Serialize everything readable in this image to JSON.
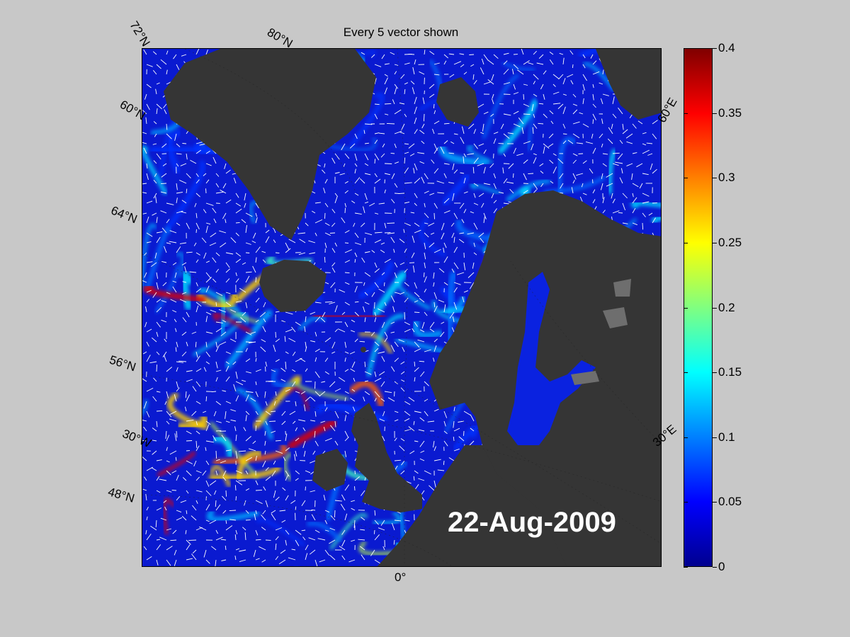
{
  "title": "Every 5 vector shown",
  "date": "22-Aug-2009",
  "lat_labels": [
    "72°N",
    "80°N",
    "60°N",
    "64°N",
    "56°N",
    "48°N"
  ],
  "lon_labels": [
    "30°W",
    "0°",
    "30°E",
    "60°E"
  ],
  "colorbar": {
    "ticks": [
      "0",
      "0.05",
      "0.1",
      "0.15",
      "0.2",
      "0.25",
      "0.3",
      "0.35",
      "0.4"
    ],
    "min": 0,
    "max": 0.4,
    "colormap": "jet"
  },
  "colors": {
    "background": "#c8c8c8",
    "land": "#353535",
    "sea_low": "#0a1ad0",
    "vectors": "#ffffff"
  }
}
